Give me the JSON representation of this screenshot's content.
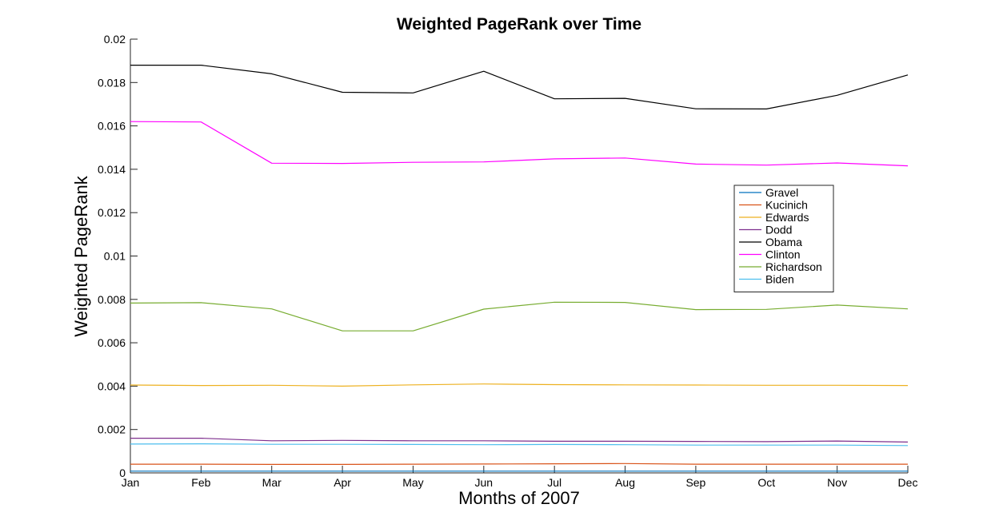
{
  "chart_data": {
    "type": "line",
    "title": "Weighted PageRank over Time",
    "xlabel": "Months of 2007",
    "ylabel": "Weighted PageRank",
    "categories": [
      "Jan",
      "Feb",
      "Mar",
      "Apr",
      "May",
      "Jun",
      "Jul",
      "Aug",
      "Sep",
      "Oct",
      "Nov",
      "Dec"
    ],
    "ylim": [
      0,
      0.02
    ],
    "yticks": [
      0,
      0.002,
      0.004,
      0.006,
      0.008,
      0.01,
      0.012,
      0.014,
      0.016,
      0.018,
      0.02
    ],
    "ytick_labels": [
      "0",
      "0.002",
      "0.004",
      "0.006",
      "0.008",
      "0.01",
      "0.012",
      "0.014",
      "0.016",
      "0.018",
      "0.02"
    ],
    "grid": false,
    "legend_position": "right",
    "series": [
      {
        "name": "Gravel",
        "color": "#0072bd",
        "values": [
          8e-05,
          8e-05,
          8e-05,
          8e-05,
          8e-05,
          8e-05,
          8e-05,
          8e-05,
          8e-05,
          8e-05,
          8e-05,
          8e-05
        ]
      },
      {
        "name": "Kucinich",
        "color": "#d95319",
        "values": [
          0.0004,
          0.0004,
          0.00039,
          0.00039,
          0.0004,
          0.00041,
          0.00042,
          0.00043,
          0.0004,
          0.0004,
          0.0004,
          0.0004
        ]
      },
      {
        "name": "Edwards",
        "color": "#edb120",
        "values": [
          0.00405,
          0.00403,
          0.00404,
          0.004,
          0.00406,
          0.0041,
          0.00407,
          0.00406,
          0.00405,
          0.00404,
          0.00404,
          0.00403
        ]
      },
      {
        "name": "Dodd",
        "color": "#7e2f8e",
        "values": [
          0.0016,
          0.0016,
          0.00148,
          0.0015,
          0.00148,
          0.00148,
          0.00146,
          0.00146,
          0.00145,
          0.00144,
          0.00147,
          0.00142
        ]
      },
      {
        "name": "Obama",
        "color": "#000000",
        "values": [
          0.0188,
          0.0188,
          0.0184,
          0.01755,
          0.01752,
          0.01852,
          0.01725,
          0.01727,
          0.01679,
          0.01678,
          0.01741,
          0.01835
        ]
      },
      {
        "name": "Clinton",
        "color": "#ff00ff",
        "values": [
          0.0162,
          0.01618,
          0.01428,
          0.01427,
          0.01432,
          0.01434,
          0.01448,
          0.01452,
          0.01424,
          0.01419,
          0.01429,
          0.01416
        ]
      },
      {
        "name": "Richardson",
        "color": "#77ac30",
        "values": [
          0.00783,
          0.00785,
          0.00756,
          0.00655,
          0.00655,
          0.00755,
          0.00787,
          0.00786,
          0.00753,
          0.00754,
          0.00774,
          0.00756
        ]
      },
      {
        "name": "Biden",
        "color": "#4dbeee",
        "values": [
          0.00133,
          0.00134,
          0.00132,
          0.00132,
          0.00131,
          0.0013,
          0.00131,
          0.0013,
          0.00128,
          0.00128,
          0.00128,
          0.00126
        ]
      }
    ]
  }
}
